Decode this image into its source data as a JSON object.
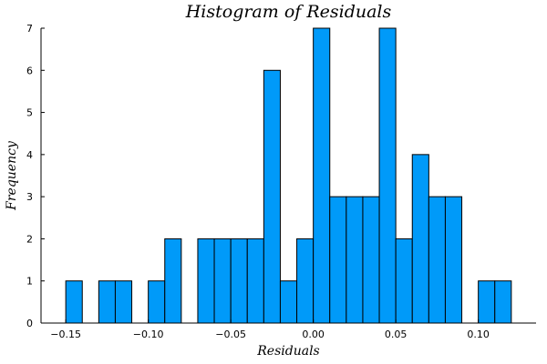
{
  "chart_data": {
    "type": "bar",
    "title": "Histogram of Residuals",
    "xlabel": "Residuals",
    "ylabel": "Frequency",
    "bin_width": 0.01,
    "bins": [
      {
        "start": -0.15,
        "end": -0.14,
        "count": 1
      },
      {
        "start": -0.14,
        "end": -0.13,
        "count": 0
      },
      {
        "start": -0.13,
        "end": -0.12,
        "count": 1
      },
      {
        "start": -0.12,
        "end": -0.11,
        "count": 1
      },
      {
        "start": -0.11,
        "end": -0.1,
        "count": 0
      },
      {
        "start": -0.1,
        "end": -0.09,
        "count": 1
      },
      {
        "start": -0.09,
        "end": -0.08,
        "count": 2
      },
      {
        "start": -0.08,
        "end": -0.07,
        "count": 0
      },
      {
        "start": -0.07,
        "end": -0.06,
        "count": 2
      },
      {
        "start": -0.06,
        "end": -0.05,
        "count": 2
      },
      {
        "start": -0.05,
        "end": -0.04,
        "count": 2
      },
      {
        "start": -0.04,
        "end": -0.03,
        "count": 2
      },
      {
        "start": -0.03,
        "end": -0.02,
        "count": 6
      },
      {
        "start": -0.02,
        "end": -0.01,
        "count": 1
      },
      {
        "start": -0.01,
        "end": 0.0,
        "count": 2
      },
      {
        "start": 0.0,
        "end": 0.01,
        "count": 7
      },
      {
        "start": 0.01,
        "end": 0.02,
        "count": 3
      },
      {
        "start": 0.02,
        "end": 0.03,
        "count": 3
      },
      {
        "start": 0.03,
        "end": 0.04,
        "count": 3
      },
      {
        "start": 0.04,
        "end": 0.05,
        "count": 7
      },
      {
        "start": 0.05,
        "end": 0.06,
        "count": 2
      },
      {
        "start": 0.06,
        "end": 0.07,
        "count": 4
      },
      {
        "start": 0.07,
        "end": 0.08,
        "count": 3
      },
      {
        "start": 0.08,
        "end": 0.09,
        "count": 3
      },
      {
        "start": 0.09,
        "end": 0.1,
        "count": 0
      },
      {
        "start": 0.1,
        "end": 0.11,
        "count": 1
      },
      {
        "start": 0.11,
        "end": 0.12,
        "count": 1
      }
    ],
    "xlim": [
      -0.165,
      0.135
    ],
    "ylim": [
      0,
      7
    ],
    "xticks": [
      -0.15,
      -0.1,
      -0.05,
      0.0,
      0.05,
      0.1
    ],
    "xtick_labels": [
      "−0.15",
      "−0.10",
      "−0.05",
      "0.00",
      "0.05",
      "0.10"
    ],
    "yticks": [
      0,
      1,
      2,
      3,
      4,
      5,
      6,
      7
    ],
    "ytick_labels": [
      "0",
      "1",
      "2",
      "3",
      "4",
      "5",
      "6",
      "7"
    ],
    "grid": false,
    "legend": "none",
    "bar_color": "#009af9",
    "edge_color": "#000000"
  }
}
